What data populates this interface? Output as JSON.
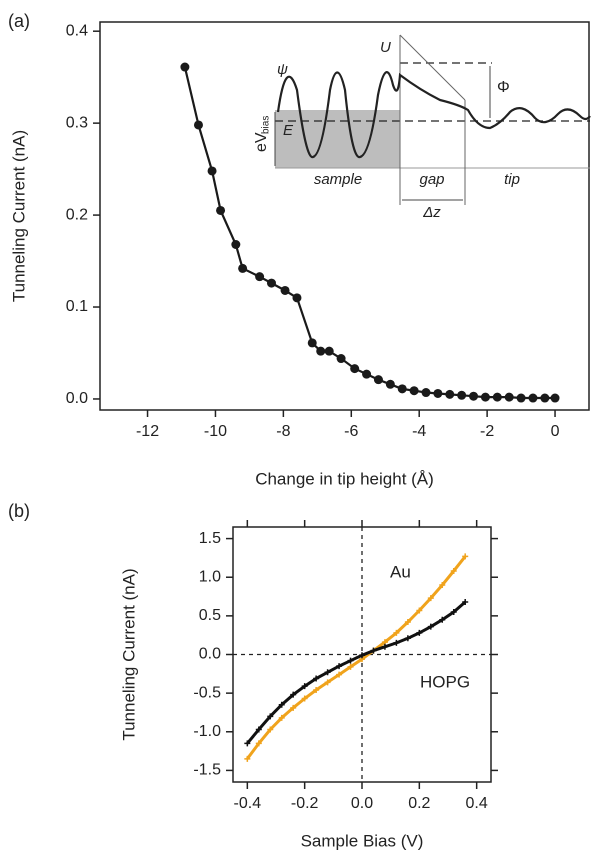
{
  "chart_data": [
    {
      "type": "line",
      "panel_label": "(a)",
      "x_label": "Change in tip height (Å)",
      "y_label": "Tunneling Current (nA)",
      "x": [
        -10.9,
        -10.5,
        -10.1,
        -9.85,
        -9.4,
        -9.2,
        -8.7,
        -8.35,
        -7.95,
        -7.6,
        -7.15,
        -6.9,
        -6.65,
        -6.3,
        -5.9,
        -5.55,
        -5.2,
        -4.85,
        -4.5,
        -4.15,
        -3.8,
        -3.45,
        -3.1,
        -2.75,
        -2.4,
        -2.05,
        -1.7,
        -1.35,
        -1.0,
        -0.65,
        -0.3,
        0.0
      ],
      "values": [
        0.361,
        0.298,
        0.248,
        0.205,
        0.168,
        0.142,
        0.133,
        0.126,
        0.118,
        0.11,
        0.061,
        0.052,
        0.052,
        0.044,
        0.033,
        0.027,
        0.021,
        0.016,
        0.011,
        0.009,
        0.007,
        0.006,
        0.005,
        0.004,
        0.003,
        0.002,
        0.002,
        0.002,
        0.001,
        0.001,
        0.001,
        0.001
      ],
      "color": "#1a1a1a",
      "marker": "circle",
      "xlim": [
        -13.4,
        1.0
      ],
      "ylim": [
        -0.012,
        0.41
      ],
      "xticks": [
        -12,
        -10,
        -8,
        -6,
        -4,
        -2,
        0
      ],
      "yticks": [
        {
          "value": 0,
          "label": "0.0"
        },
        0.1,
        0.2,
        0.3,
        0.4
      ],
      "annotations": [
        "ψ",
        "U",
        "Φ",
        "E",
        "eV",
        "bias",
        "sample",
        "gap",
        "Δz",
        "tip"
      ]
    },
    {
      "type": "line",
      "panel_label": "(b)",
      "x_label": "Sample Bias (V)",
      "y_label": "Tunneling Current (nA)",
      "x": [
        -0.4,
        -0.36,
        -0.32,
        -0.28,
        -0.24,
        -0.2,
        -0.16,
        -0.12,
        -0.08,
        -0.04,
        0.0,
        0.04,
        0.08,
        0.12,
        0.16,
        0.2,
        0.24,
        0.28,
        0.32,
        0.36
      ],
      "series": [
        {
          "name": "Au",
          "color": "#f0a31c",
          "values": [
            -1.35,
            -1.15,
            -0.97,
            -0.82,
            -0.69,
            -0.57,
            -0.46,
            -0.36,
            -0.26,
            -0.16,
            -0.06,
            0.05,
            0.16,
            0.28,
            0.42,
            0.57,
            0.73,
            0.9,
            1.08,
            1.27
          ]
        },
        {
          "name": "HOPG",
          "color": "#111111",
          "values": [
            -1.15,
            -0.97,
            -0.8,
            -0.65,
            -0.52,
            -0.41,
            -0.31,
            -0.23,
            -0.15,
            -0.08,
            -0.01,
            0.05,
            0.1,
            0.15,
            0.21,
            0.28,
            0.36,
            0.45,
            0.55,
            0.68
          ]
        }
      ],
      "marker": "plus",
      "zero_lines": true,
      "xlim": [
        -0.45,
        0.45
      ],
      "ylim": [
        -1.65,
        1.65
      ],
      "xticks": [
        -0.4,
        -0.2,
        {
          "value": 0,
          "label": "0.0"
        },
        0.2,
        0.4
      ],
      "yticks": [
        -1.5,
        {
          "value": -1,
          "label": "-1.0"
        },
        -0.5,
        {
          "value": 0,
          "label": "0.0"
        },
        0.5,
        {
          "value": 1,
          "label": "1.0"
        },
        1.5
      ]
    }
  ]
}
